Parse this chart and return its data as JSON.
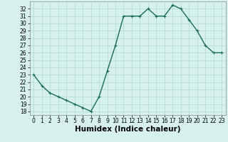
{
  "x": [
    0,
    1,
    2,
    3,
    4,
    5,
    6,
    7,
    8,
    9,
    10,
    11,
    12,
    13,
    14,
    15,
    16,
    17,
    18,
    19,
    20,
    21,
    22,
    23
  ],
  "y": [
    23.0,
    21.5,
    20.5,
    20.0,
    19.5,
    19.0,
    18.5,
    18.0,
    20.0,
    23.5,
    27.0,
    31.0,
    31.0,
    31.0,
    32.0,
    31.0,
    31.0,
    32.5,
    32.0,
    30.5,
    29.0,
    27.0,
    26.0,
    26.0
  ],
  "line_color": "#1a6b5a",
  "marker": "+",
  "markersize": 3,
  "bg_color": "#d6f0ee",
  "grid_color": "#b0d8d4",
  "xlabel": "Humidex (Indice chaleur)",
  "xlim": [
    -0.5,
    23.5
  ],
  "ylim": [
    17.5,
    33.0
  ],
  "yticks": [
    18,
    19,
    20,
    21,
    22,
    23,
    24,
    25,
    26,
    27,
    28,
    29,
    30,
    31,
    32
  ],
  "xticks": [
    0,
    1,
    2,
    3,
    4,
    5,
    6,
    7,
    8,
    9,
    10,
    11,
    12,
    13,
    14,
    15,
    16,
    17,
    18,
    19,
    20,
    21,
    22,
    23
  ],
  "tick_labelsize": 5.5,
  "xlabel_fontsize": 7.5,
  "linewidth": 1.0
}
